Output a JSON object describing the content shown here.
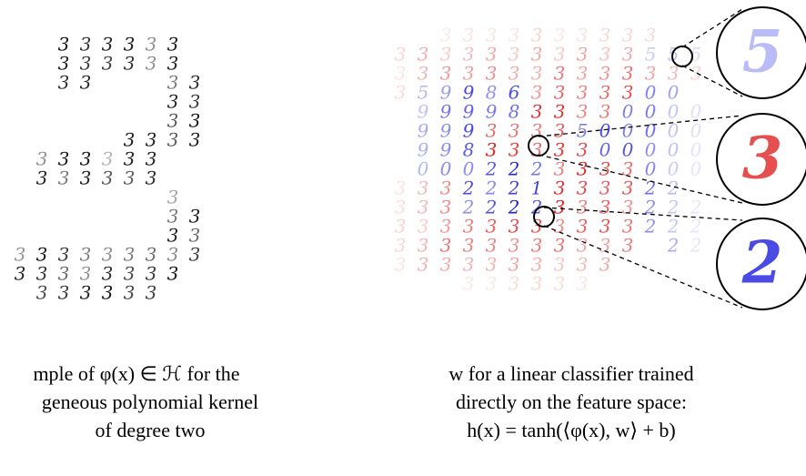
{
  "left_panel": {
    "rows": [
      "  333333 ",
      "  333333 ",
      "  33   33",
      "       33",
      "       33",
      "     3333",
      " 333333  ",
      " 333333  ",
      "       3 ",
      "       33",
      "       33",
      "333333333",
      "33333333 ",
      " 333333  "
    ]
  },
  "right_panel": {
    "rows": [
      "  3333333333  ",
      "33333333333555",
      "33333333333333",
      "3599863333300 ",
      " 9999833330000",
      " 9993333500000",
      " 9983333300000",
      " 0002223333000",
      "3332221333322 ",
      "33322223333222",
      "33333333333222",
      "33333333333 22",
      "3333333333    ",
      "   333333     "
    ]
  },
  "zoom": [
    {
      "glyph": "5"
    },
    {
      "glyph": "3"
    },
    {
      "glyph": "2"
    }
  ],
  "captions": {
    "left": [
      "mple of φ(x) ∈ ℋ for the",
      "geneous polynomial kernel",
      "of degree two"
    ],
    "right": [
      "w for a linear classifier trained",
      "directly on the feature space:",
      "h(x) = tanh(⟨φ(x), w⟩ + b)"
    ]
  }
}
